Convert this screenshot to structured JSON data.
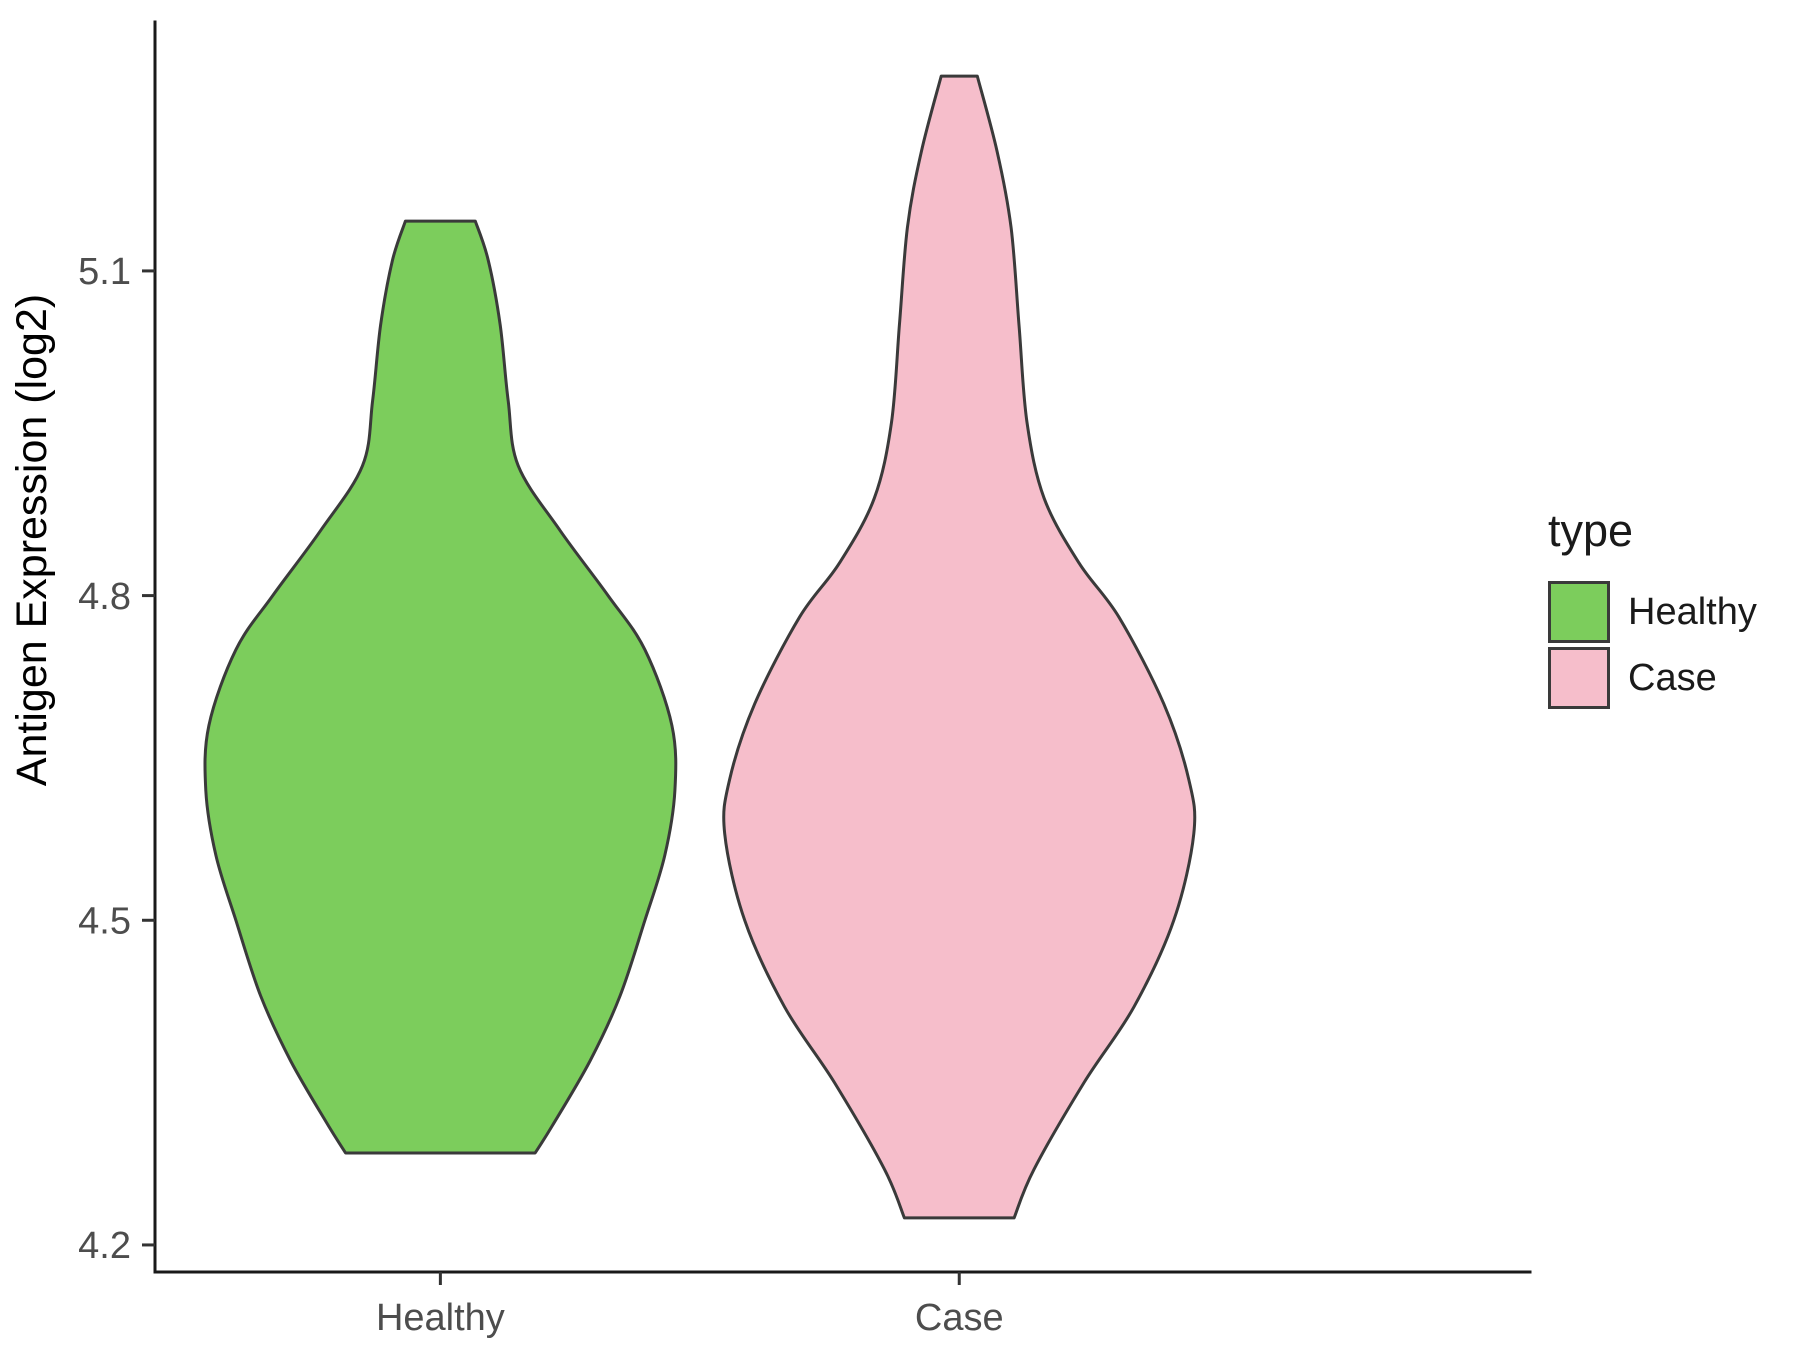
{
  "chart_data": {
    "type": "violin",
    "title": "",
    "xlabel": "",
    "ylabel": "Antigen Expression (log2)",
    "categories": [
      "Healthy",
      "Case"
    ],
    "y_tick_values": [
      4.2,
      4.5,
      4.8,
      5.1
    ],
    "ylim": [
      4.175,
      5.33
    ],
    "xlim": [
      0.45,
      3.1
    ],
    "grid": false,
    "legend": {
      "title": "type",
      "position": "right",
      "entries": [
        {
          "label": "Healthy",
          "color": "#7ccd5c"
        },
        {
          "label": "Case",
          "color": "#f6becb"
        }
      ]
    },
    "stroke_color": "#3a3a3a",
    "axis_color": "#1a1a1a",
    "tick_label_color": "#4d4d4d",
    "series": [
      {
        "name": "Healthy",
        "fill": "#7ccd5c",
        "center": 1,
        "max_halfwidth": 0.452,
        "profile": [
          [
            5.146,
            0.149
          ],
          [
            5.11,
            0.204
          ],
          [
            5.05,
            0.255
          ],
          [
            4.98,
            0.289
          ],
          [
            4.92,
            0.332
          ],
          [
            4.86,
            0.511
          ],
          [
            4.8,
            0.715
          ],
          [
            4.75,
            0.872
          ],
          [
            4.68,
            0.987
          ],
          [
            4.62,
            1.0
          ],
          [
            4.56,
            0.957
          ],
          [
            4.5,
            0.872
          ],
          [
            4.43,
            0.766
          ],
          [
            4.37,
            0.638
          ],
          [
            4.31,
            0.477
          ],
          [
            4.285,
            0.404
          ]
        ]
      },
      {
        "name": "Case",
        "fill": "#f6becb",
        "center": 2,
        "max_halfwidth": 0.452,
        "profile": [
          [
            5.28,
            0.077
          ],
          [
            5.21,
            0.162
          ],
          [
            5.14,
            0.221
          ],
          [
            5.05,
            0.255
          ],
          [
            4.96,
            0.289
          ],
          [
            4.89,
            0.362
          ],
          [
            4.83,
            0.511
          ],
          [
            4.78,
            0.681
          ],
          [
            4.7,
            0.872
          ],
          [
            4.63,
            0.979
          ],
          [
            4.58,
            1.0
          ],
          [
            4.5,
            0.915
          ],
          [
            4.42,
            0.745
          ],
          [
            4.35,
            0.532
          ],
          [
            4.27,
            0.319
          ],
          [
            4.225,
            0.234
          ]
        ]
      }
    ]
  }
}
